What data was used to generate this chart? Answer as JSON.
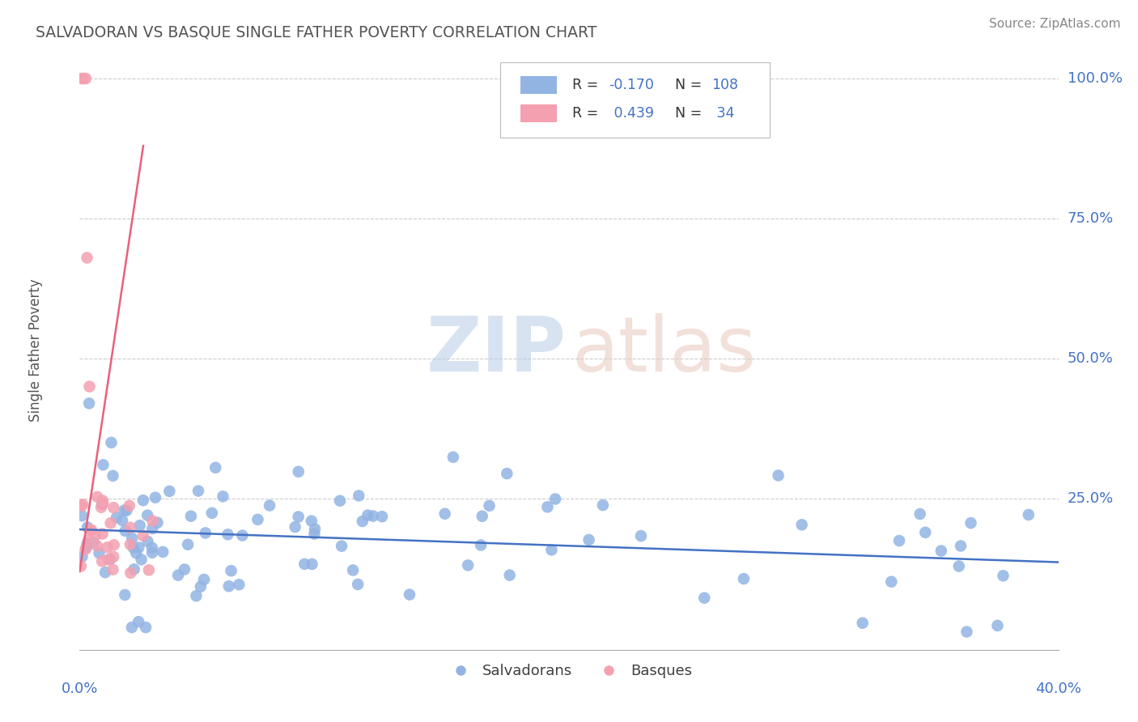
{
  "title": "SALVADORAN VS BASQUE SINGLE FATHER POVERTY CORRELATION CHART",
  "source": "Source: ZipAtlas.com",
  "ylabel": "Single Father Poverty",
  "yticks_right": [
    "100.0%",
    "75.0%",
    "50.0%",
    "25.0%"
  ],
  "yticks_right_vals": [
    1.0,
    0.75,
    0.5,
    0.25
  ],
  "blue_color": "#92b4e3",
  "pink_color": "#f4a0b0",
  "blue_line_color": "#4472c4",
  "pink_line_color": "#e8607a",
  "legend_text_color": "#4472c4",
  "title_color": "#555555",
  "source_color": "#888888",
  "background_color": "#ffffff",
  "grid_color": "#cccccc",
  "xlim": [
    0.0,
    0.4
  ],
  "ylim": [
    -0.02,
    1.05
  ]
}
